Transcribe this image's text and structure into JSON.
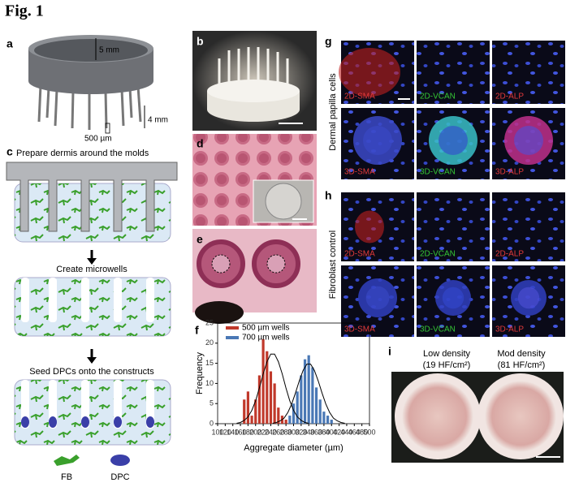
{
  "figure_title": "Fig. 1",
  "panel_labels": [
    "a",
    "b",
    "c",
    "d",
    "e",
    "f",
    "g",
    "h",
    "i"
  ],
  "panel_a": {
    "height": "5 mm",
    "pin_height": "4 mm",
    "pin_width": "500 µm"
  },
  "panel_c": {
    "steps": [
      "Prepare dermis around the molds",
      "Create microwells",
      "Seed DPCs onto the constructs"
    ],
    "legend": [
      "FB",
      "DPC"
    ]
  },
  "panel_g": {
    "side_label": "Dermal papilla cells",
    "labels": [
      "2D-SMA",
      "2D-VCAN",
      "2D-ALP",
      "3D-SMA",
      "3D-VCAN",
      "3D-ALP"
    ]
  },
  "panel_h": {
    "side_label": "Fibroblast control",
    "labels": [
      "2D-SMA",
      "2D-VCAN",
      "2D-ALP",
      "3D-SMA",
      "3D-VCAN",
      "3D-ALP"
    ]
  },
  "panel_i": {
    "labels": [
      "Low density",
      "(19 HF/cm²)",
      "Mod density",
      "(81 HF/cm²)"
    ]
  },
  "chart_data": {
    "type": "bar",
    "xlabel": "Aggregate diameter (µm)",
    "ylabel": "Frequency",
    "xlim": [
      100,
      500
    ],
    "ylim": [
      0,
      25
    ],
    "xticks": [
      100,
      120,
      140,
      160,
      180,
      200,
      220,
      240,
      260,
      280,
      300,
      320,
      340,
      360,
      380,
      400,
      420,
      440,
      460,
      480,
      500
    ],
    "yticks": [
      0,
      5,
      10,
      15,
      20,
      25
    ],
    "legend": "upper left",
    "series": [
      {
        "name": "500 µm wells",
        "color": "#c0392b",
        "x": [
          170,
          180,
          190,
          200,
          210,
          220,
          230,
          240,
          250,
          260,
          270,
          280
        ],
        "values": [
          6,
          8,
          2,
          6,
          12,
          21,
          18,
          13,
          10,
          4,
          2,
          1
        ]
      },
      {
        "name": "700 µm wells",
        "color": "#4a78b5",
        "x": [
          290,
          300,
          310,
          320,
          330,
          340,
          350,
          360,
          370,
          380,
          390,
          400
        ],
        "values": [
          2,
          5,
          8,
          12,
          16,
          17,
          14,
          9,
          6,
          3,
          2,
          1
        ]
      }
    ],
    "fits": [
      {
        "color": "#000000",
        "x": [
          150,
          160,
          170,
          180,
          190,
          200,
          210,
          220,
          230,
          240,
          250,
          260,
          270,
          280,
          290,
          300,
          310,
          320,
          330,
          340
        ],
        "values": [
          0.1,
          0.3,
          0.8,
          1.7,
          3.3,
          5.7,
          8.9,
          12.4,
          15.4,
          17.3,
          17.3,
          15.4,
          12.4,
          8.9,
          5.7,
          3.3,
          1.7,
          0.8,
          0.3,
          0.1
        ]
      },
      {
        "color": "#000000",
        "x": [
          245,
          255,
          265,
          275,
          285,
          295,
          305,
          315,
          325,
          335,
          345,
          355,
          365,
          375,
          385,
          395,
          405,
          415,
          425,
          435
        ],
        "values": [
          0.1,
          0.3,
          0.7,
          1.4,
          2.8,
          4.9,
          7.6,
          10.6,
          13.2,
          14.8,
          14.8,
          13.2,
          10.6,
          7.6,
          4.9,
          2.8,
          1.4,
          0.7,
          0.3,
          0.1
        ]
      }
    ]
  }
}
